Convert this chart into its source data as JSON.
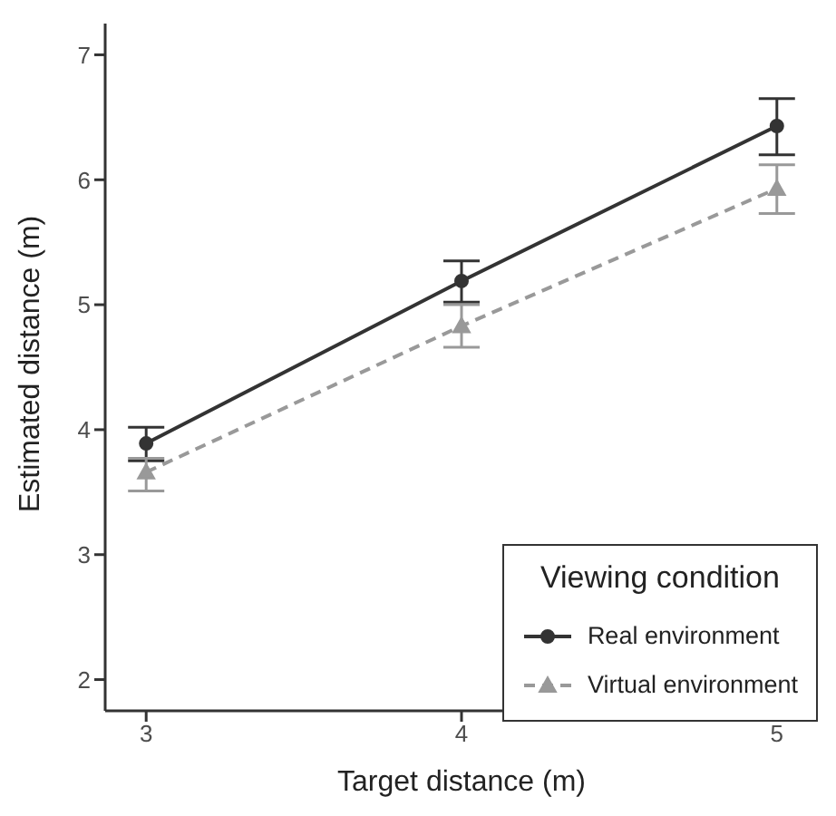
{
  "chart_data": {
    "type": "line",
    "xlabel": "Target distance (m)",
    "ylabel": "Estimated distance (m)",
    "legend_title": "Viewing condition",
    "x": [
      3,
      4,
      5
    ],
    "series": [
      {
        "name": "Real environment",
        "color": "#333333",
        "values": [
          3.89,
          5.19,
          6.43
        ],
        "errors": [
          [
            3.75,
            4.02
          ],
          [
            5.02,
            5.35
          ],
          [
            6.2,
            6.65
          ]
        ],
        "marker": "circle",
        "line_style": "solid"
      },
      {
        "name": "Virtual environment",
        "color": "#999999",
        "values": [
          3.66,
          4.83,
          5.93
        ],
        "errors": [
          [
            3.51,
            3.77
          ],
          [
            4.66,
            5.0
          ],
          [
            5.73,
            6.12
          ]
        ],
        "marker": "triangle",
        "line_style": "dashed"
      }
    ],
    "xlim": [
      2.87,
      5.13
    ],
    "xticks": [
      3,
      4,
      5
    ],
    "ylim": [
      1.75,
      7.25
    ],
    "yticks": [
      2,
      3,
      4,
      5,
      6,
      7
    ],
    "grid": false,
    "legend": "bottom right"
  }
}
